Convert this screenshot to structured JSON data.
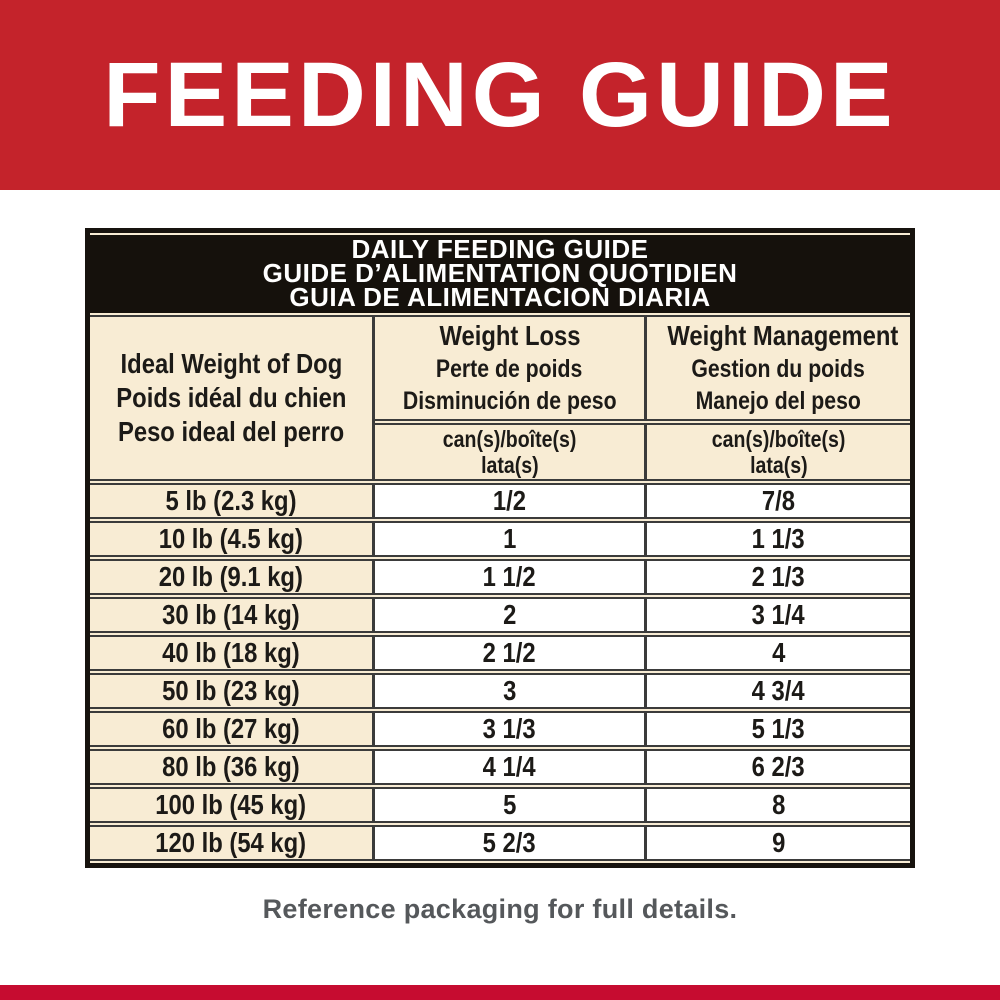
{
  "banner": {
    "title": "FEEDING GUIDE",
    "bg_color": "#c4232b",
    "text_color": "#ffffff"
  },
  "table": {
    "title_lines": [
      "DAILY FEEDING GUIDE",
      "GUIDE D’ALIMENTATION QUOTIDIEN",
      "GUIA DE ALIMENTACION DIARIA"
    ],
    "columns": [
      {
        "lines": [
          "Ideal Weight of Dog",
          "Poids idéal du chien",
          "Peso ideal del perro"
        ]
      },
      {
        "lines": [
          "Weight Loss",
          "Perte de poids",
          "Disminución de peso"
        ],
        "unit_lines": [
          "can(s)/boîte(s)",
          "lata(s)"
        ]
      },
      {
        "lines": [
          "Weight Management",
          "Gestion du poids",
          "Manejo del peso"
        ],
        "unit_lines": [
          "can(s)/boîte(s)",
          "lata(s)"
        ]
      }
    ],
    "rows": [
      {
        "weight": "5 lb (2.3 kg)",
        "weight_loss": "1/2",
        "weight_management": "7/8"
      },
      {
        "weight": "10 lb (4.5 kg)",
        "weight_loss": "1",
        "weight_management": "1 1/3"
      },
      {
        "weight": "20 lb (9.1 kg)",
        "weight_loss": "1 1/2",
        "weight_management": "2 1/3"
      },
      {
        "weight": "30 lb (14 kg)",
        "weight_loss": "2",
        "weight_management": "3 1/4"
      },
      {
        "weight": "40 lb (18 kg)",
        "weight_loss": "2 1/2",
        "weight_management": "4"
      },
      {
        "weight": "50 lb (23 kg)",
        "weight_loss": "3",
        "weight_management": "4 3/4"
      },
      {
        "weight": "60 lb (27 kg)",
        "weight_loss": "3 1/3",
        "weight_management": "5 1/3"
      },
      {
        "weight": "80 lb (36 kg)",
        "weight_loss": "4 1/4",
        "weight_management": "6 2/3"
      },
      {
        "weight": "100 lb (45 kg)",
        "weight_loss": "5",
        "weight_management": "8"
      },
      {
        "weight": "120 lb (54 kg)",
        "weight_loss": "5 2/3",
        "weight_management": "9"
      }
    ],
    "colors": {
      "cream_bg": "#f8ecd4",
      "white_bg": "#ffffff",
      "title_bar_bg": "#15110c",
      "border": "#3b3b3b",
      "outer_border": "#17130e"
    }
  },
  "footer": {
    "note": "Reference packaging for full details.",
    "text_color": "#55585b",
    "strip_color": "#c60c30"
  }
}
